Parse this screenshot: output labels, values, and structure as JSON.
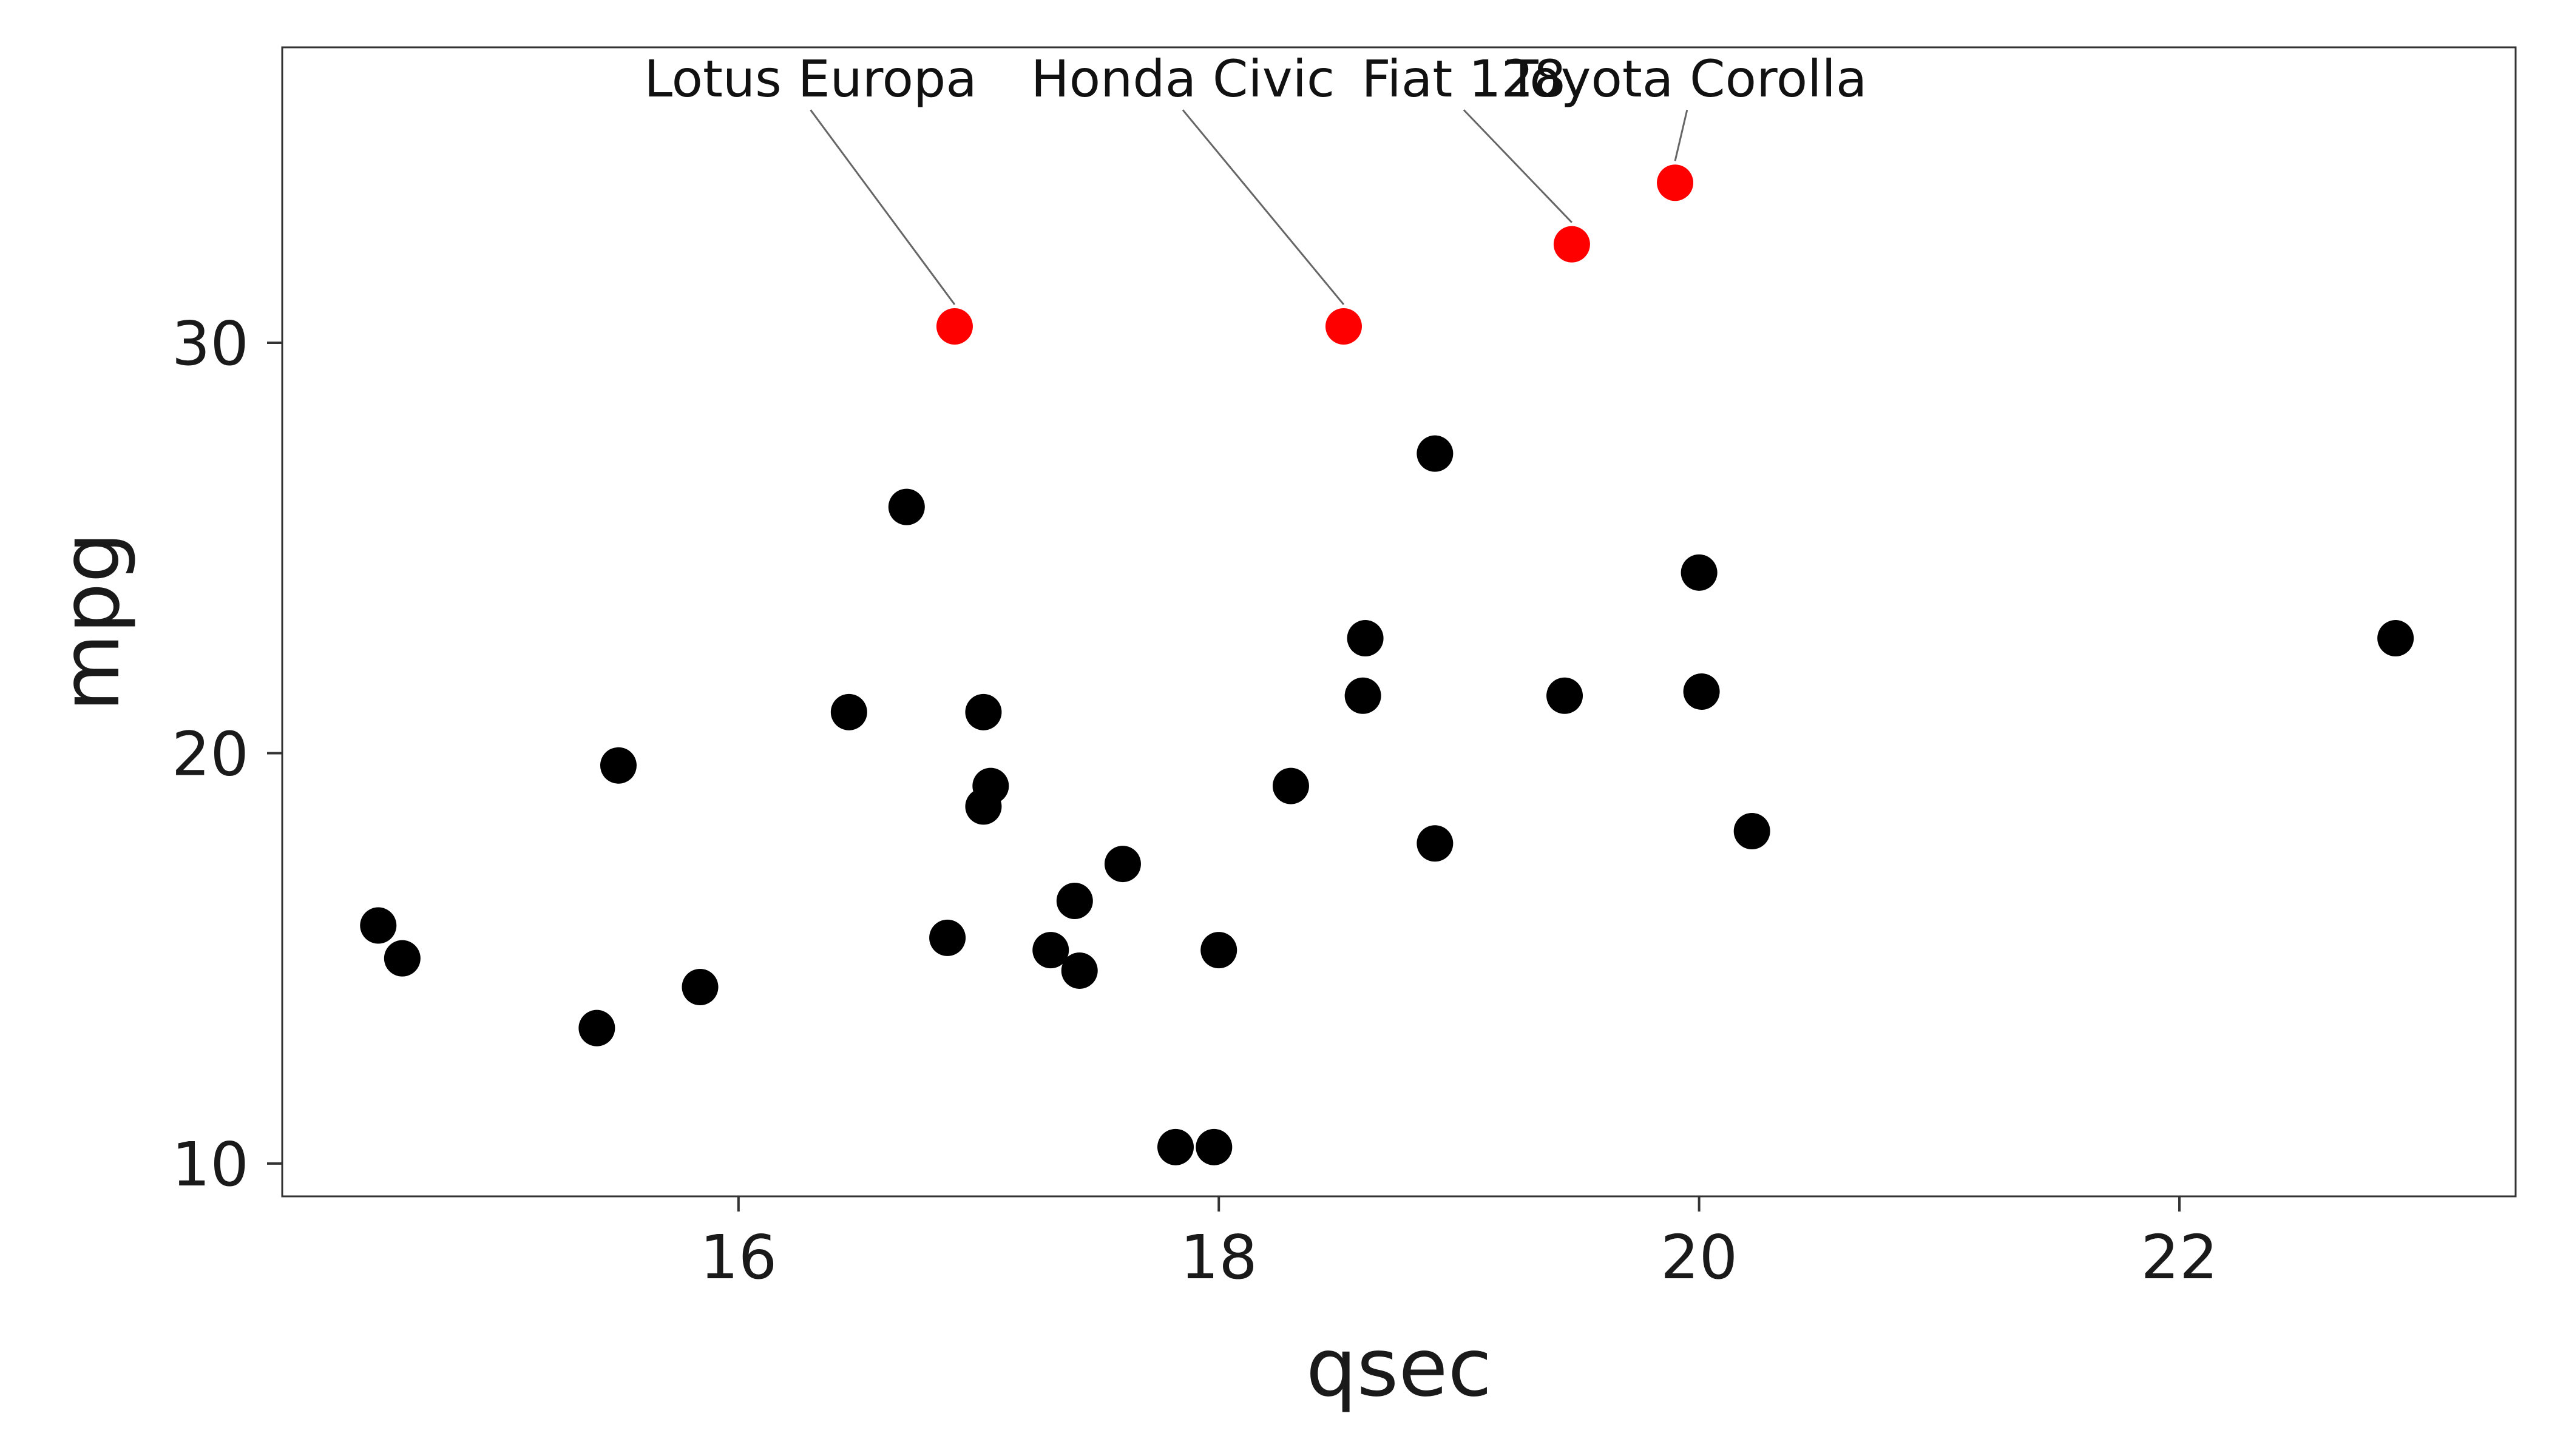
{
  "chart_data": {
    "type": "scatter",
    "xlabel": "qsec",
    "ylabel": "mpg",
    "xlim": [
      14.1,
      23.4
    ],
    "ylim": [
      9.2,
      37.2
    ],
    "xticks": [
      16,
      18,
      20,
      22
    ],
    "yticks": [
      10,
      20,
      30
    ],
    "grid": false,
    "colors": {
      "normal": "#000000",
      "highlight": "#ff0000",
      "leader": "#666666"
    },
    "points": [
      {
        "x": 16.46,
        "y": 21.0
      },
      {
        "x": 17.02,
        "y": 21.0
      },
      {
        "x": 18.61,
        "y": 22.8
      },
      {
        "x": 19.44,
        "y": 21.4
      },
      {
        "x": 17.02,
        "y": 18.7
      },
      {
        "x": 20.22,
        "y": 18.1
      },
      {
        "x": 15.84,
        "y": 14.3
      },
      {
        "x": 20.0,
        "y": 24.4
      },
      {
        "x": 22.9,
        "y": 22.8
      },
      {
        "x": 18.3,
        "y": 19.2
      },
      {
        "x": 18.9,
        "y": 17.8
      },
      {
        "x": 17.4,
        "y": 16.4
      },
      {
        "x": 17.6,
        "y": 17.3
      },
      {
        "x": 18.0,
        "y": 15.2
      },
      {
        "x": 17.98,
        "y": 10.4
      },
      {
        "x": 17.82,
        "y": 10.4
      },
      {
        "x": 17.42,
        "y": 14.7
      },
      {
        "x": 19.47,
        "y": 32.4,
        "label": "Fiat 128"
      },
      {
        "x": 18.52,
        "y": 30.4,
        "label": "Honda Civic"
      },
      {
        "x": 19.9,
        "y": 33.9,
        "label": "Toyota Corolla"
      },
      {
        "x": 20.01,
        "y": 21.5
      },
      {
        "x": 16.87,
        "y": 15.5
      },
      {
        "x": 17.3,
        "y": 15.2
      },
      {
        "x": 15.41,
        "y": 13.3
      },
      {
        "x": 17.05,
        "y": 19.2
      },
      {
        "x": 18.9,
        "y": 27.3
      },
      {
        "x": 16.7,
        "y": 26.0
      },
      {
        "x": 16.9,
        "y": 30.4,
        "label": "Lotus Europa"
      },
      {
        "x": 14.5,
        "y": 15.8
      },
      {
        "x": 15.5,
        "y": 19.7
      },
      {
        "x": 14.6,
        "y": 15.0
      },
      {
        "x": 18.6,
        "y": 21.4
      }
    ],
    "annotations": [
      {
        "text": "Lotus Europa",
        "x": 16.3,
        "y": 36.0
      },
      {
        "text": "Honda Civic",
        "x": 17.85,
        "y": 36.0
      },
      {
        "text": "Fiat 128",
        "x": 19.02,
        "y": 36.0
      },
      {
        "text": "Toyota Corolla",
        "x": 19.95,
        "y": 36.0
      }
    ]
  }
}
